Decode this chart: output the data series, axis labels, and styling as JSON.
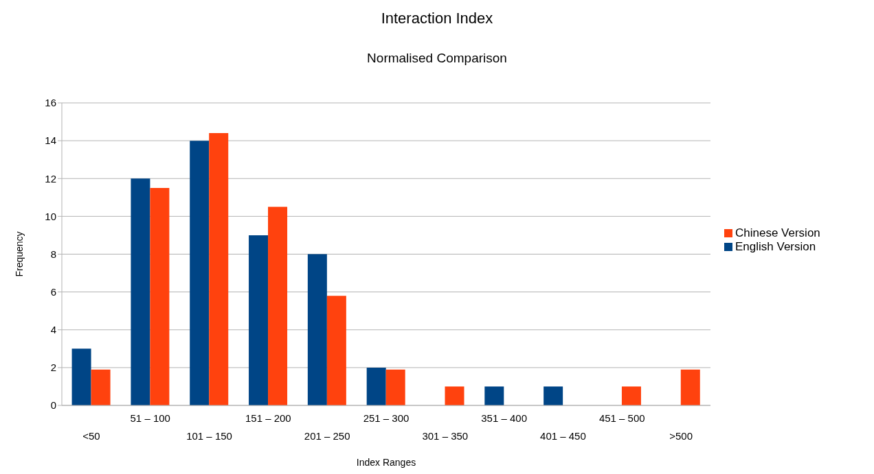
{
  "chart_data": {
    "type": "bar",
    "title": "Interaction Index",
    "subtitle": "Normalised Comparison",
    "xlabel": "Index Ranges",
    "ylabel": "Frequency",
    "categories": [
      "<50",
      "51 – 100",
      "101 – 150",
      "151 – 200",
      "201 – 250",
      "251 – 300",
      "301 – 350",
      "351 – 400",
      "401 – 450",
      "451 – 500",
      ">500"
    ],
    "series": [
      {
        "name": "English Version",
        "color": "#004586",
        "values": [
          3,
          12,
          14,
          9,
          8,
          2,
          0,
          1,
          1,
          0,
          0
        ]
      },
      {
        "name": "Chinese Version",
        "color": "#ff420e",
        "values": [
          1.9,
          11.5,
          14.4,
          10.5,
          5.8,
          1.9,
          1.0,
          0,
          0,
          1.0,
          1.9
        ]
      }
    ],
    "ylim": [
      0,
      16
    ],
    "yticks": [
      0,
      2,
      4,
      6,
      8,
      10,
      12,
      14,
      16
    ],
    "grid": "y",
    "legend": "right"
  }
}
